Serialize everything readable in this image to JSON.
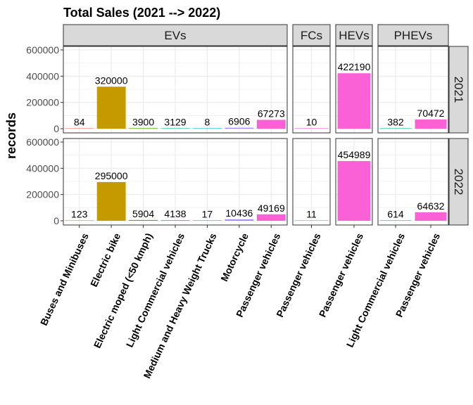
{
  "chart_data": {
    "type": "bar",
    "title": "Total Sales (2021 --> 2022)",
    "ylabel": "records",
    "xlabel": "",
    "ylim": [
      0,
      620000
    ],
    "yticks": [
      0,
      200000,
      400000,
      600000
    ],
    "grid": true,
    "legend": "none",
    "facet_cols": [
      {
        "name": "EVs",
        "categories": [
          "Buses and Minibuses",
          "Electric bike",
          "Electric moped (<50 kmph)",
          "Light Commercial vehicles",
          "Medium and Heavy Weight Trucks",
          "Motorcycle",
          "Passenger vehicles"
        ]
      },
      {
        "name": "FCs",
        "categories": [
          "Passenger vehicles"
        ]
      },
      {
        "name": "HEVs",
        "categories": [
          "Passenger vehicles"
        ]
      },
      {
        "name": "PHEVs",
        "categories": [
          "Light Commercial vehicles",
          "Passenger vehicles"
        ]
      }
    ],
    "facet_rows": [
      "2021",
      "2022"
    ],
    "bar_colors": {
      "Buses and Minibuses": "#F8766D",
      "Electric bike": "#C49A00",
      "Electric moped (<50 kmph)": "#53B400",
      "Light Commercial vehicles": "#00C094",
      "Medium and Heavy Weight Trucks": "#00B6EB",
      "Motorcycle": "#A58AFF",
      "Passenger vehicles": "#FB61D7"
    },
    "values": {
      "2021": {
        "EVs": [
          84,
          320000,
          3900,
          3129,
          8,
          6906,
          67273
        ],
        "FCs": [
          10
        ],
        "HEVs": [
          422190
        ],
        "PHEVs": [
          382,
          70472
        ]
      },
      "2022": {
        "EVs": [
          123,
          295000,
          5904,
          4138,
          17,
          10436,
          49169
        ],
        "FCs": [
          11
        ],
        "HEVs": [
          454989
        ],
        "PHEVs": [
          614,
          64632
        ]
      }
    }
  }
}
